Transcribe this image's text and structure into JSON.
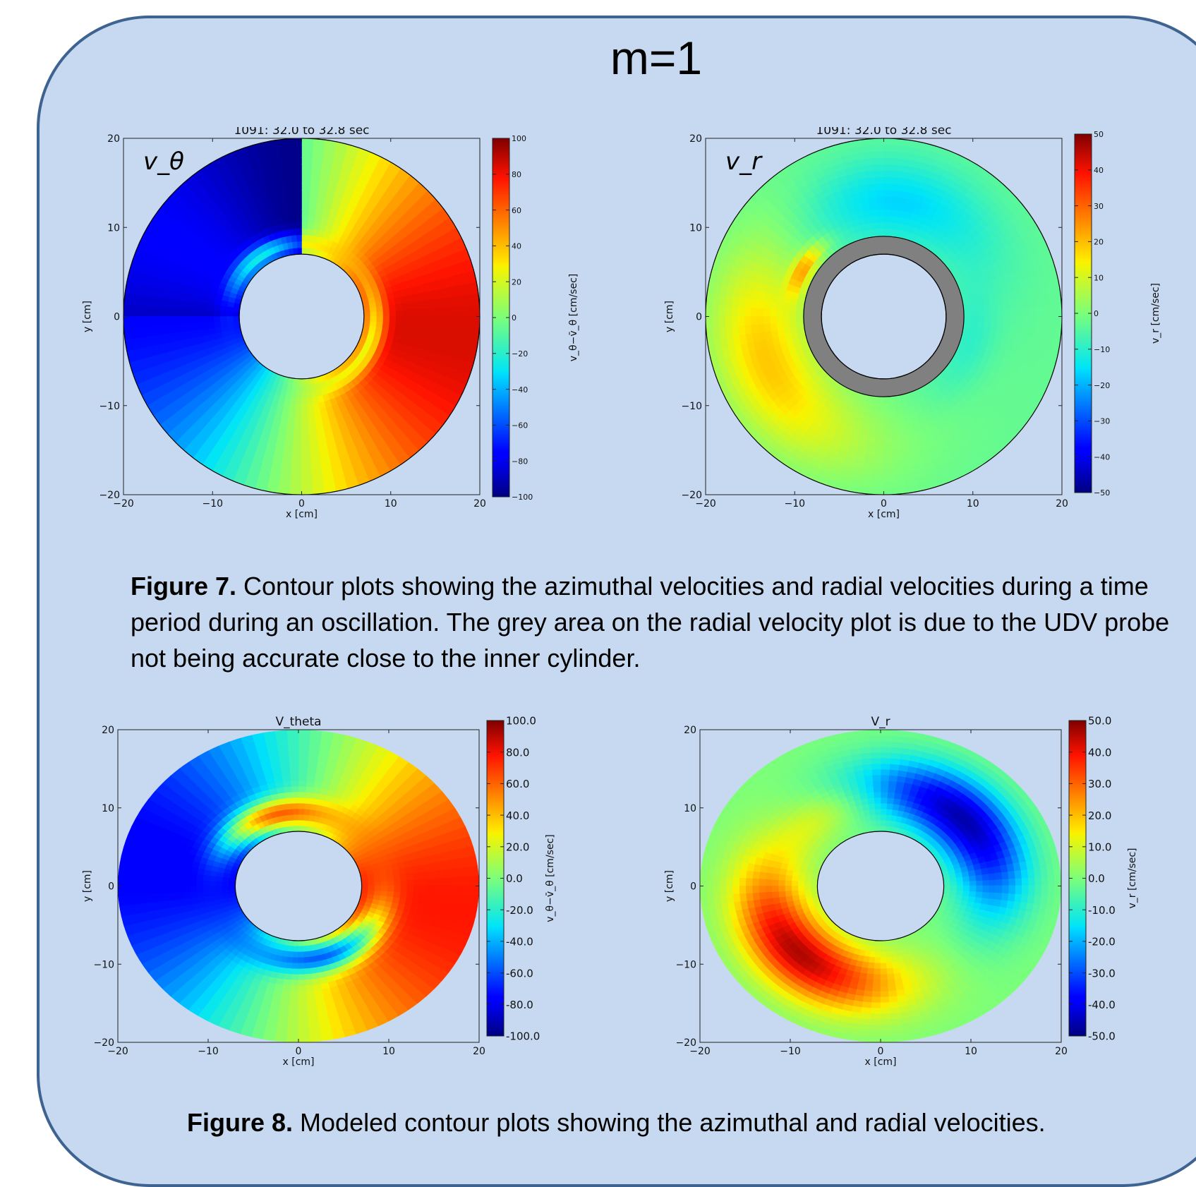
{
  "main_title": "m=1",
  "figure7_caption": {
    "label": "Figure 7.",
    "text": " Contour plots showing the  azimuthal velocities and radial velocities during a time period during an oscillation. The grey area on the radial velocity plot is due to the UDV probe not being accurate close to the inner cylinder."
  },
  "figure8_caption": {
    "label": "Figure 8.",
    "text": " Modeled contour plots showing the azimuthal and radial velocities."
  },
  "colors": {
    "panel_fill": "#c6d9f0",
    "panel_border": "#3e6390",
    "probe_grey": "#808080"
  },
  "chart_data": [
    {
      "id": "p1",
      "type": "heatmap",
      "title": "1091: 32.0 to 32.8 sec",
      "annotation": "v_θ",
      "xlabel": "x [cm]",
      "ylabel": "y [cm]",
      "xlim": [
        -20,
        20
      ],
      "ylim": [
        -20,
        20
      ],
      "xticks": [
        -20,
        -10,
        0,
        10,
        20
      ],
      "yticks": [
        -20,
        -10,
        0,
        10,
        20
      ],
      "xtick_labels": [
        "−20",
        "−10",
        "0",
        "10",
        "20"
      ],
      "ytick_labels": [
        "−20",
        "−10",
        "0",
        "10",
        "20"
      ],
      "colorbar": {
        "label": "v_θ−v̄_θ [cm/sec]",
        "min": -100,
        "max": 100,
        "ticks": [
          100,
          80,
          60,
          40,
          20,
          0,
          -20,
          -40,
          -60,
          -80,
          -100
        ],
        "tick_labels": [
          "100",
          "80",
          "60",
          "40",
          "20",
          "0",
          "−20",
          "−40",
          "−60",
          "−80",
          "−100"
        ]
      },
      "inner_radius": 7,
      "outer_radius": 20
    },
    {
      "id": "p2",
      "type": "heatmap",
      "title": "1091: 32.0 to 32.8 sec",
      "annotation": "v_r",
      "xlabel": "x [cm]",
      "ylabel": "y [cm]",
      "xlim": [
        -20,
        20
      ],
      "ylim": [
        -20,
        20
      ],
      "xticks": [
        -20,
        -10,
        0,
        10,
        20
      ],
      "yticks": [
        -20,
        -10,
        0,
        10,
        20
      ],
      "xtick_labels": [
        "−20",
        "−10",
        "0",
        "10",
        "20"
      ],
      "ytick_labels": [
        "−20",
        "−10",
        "0",
        "10",
        "20"
      ],
      "colorbar": {
        "label": "v_r [cm/sec]",
        "min": -50,
        "max": 50,
        "ticks": [
          50,
          40,
          30,
          20,
          10,
          0,
          -10,
          -20,
          -30,
          -40,
          -50
        ],
        "tick_labels": [
          "50",
          "40",
          "30",
          "20",
          "10",
          "0",
          "−10",
          "−20",
          "−30",
          "−40",
          "−50"
        ]
      },
      "inner_radius": 7,
      "outer_radius": 20,
      "grey_ring_outer_radius": 9
    },
    {
      "id": "p3",
      "type": "heatmap",
      "title": "V_theta",
      "xlabel": "x [cm]",
      "ylabel": "y [cm]",
      "xlim": [
        -20,
        20
      ],
      "ylim": [
        -20,
        20
      ],
      "xticks": [
        -20,
        -10,
        0,
        10,
        20
      ],
      "yticks": [
        -20,
        -10,
        0,
        10,
        20
      ],
      "xtick_labels": [
        "−20",
        "−10",
        "0",
        "10",
        "20"
      ],
      "ytick_labels": [
        "−20",
        "−10",
        "0",
        "10",
        "20"
      ],
      "colorbar": {
        "label": "v_θ−v̄_θ [cm/sec]",
        "min": -100,
        "max": 100,
        "ticks": [
          100,
          80,
          60,
          40,
          20,
          0,
          -20,
          -40,
          -60,
          -80,
          -100
        ],
        "tick_labels": [
          "100.0",
          "80.0",
          "60.0",
          "40.0",
          "20.0",
          "0.0",
          "-20.0",
          "-40.0",
          "-60.0",
          "-80.0",
          "-100.0"
        ]
      },
      "inner_radius": 7,
      "outer_radius": 20
    },
    {
      "id": "p4",
      "type": "heatmap",
      "title": "V_r",
      "xlabel": "x [cm]",
      "ylabel": "y [cm]",
      "xlim": [
        -20,
        20
      ],
      "ylim": [
        -20,
        20
      ],
      "xticks": [
        -20,
        -10,
        0,
        10,
        20
      ],
      "yticks": [
        -20,
        -10,
        0,
        10,
        20
      ],
      "xtick_labels": [
        "−20",
        "−10",
        "0",
        "10",
        "20"
      ],
      "ytick_labels": [
        "−20",
        "−10",
        "0",
        "10",
        "20"
      ],
      "colorbar": {
        "label": "v_r [cm/sec]",
        "min": -50,
        "max": 50,
        "ticks": [
          50,
          40,
          30,
          20,
          10,
          0,
          -10,
          -20,
          -30,
          -40,
          -50
        ],
        "tick_labels": [
          "50.0",
          "40.0",
          "30.0",
          "20.0",
          "10.0",
          "0.0",
          "-10.0",
          "-20.0",
          "-30.0",
          "-40.0",
          "-50.0"
        ]
      },
      "inner_radius": 7,
      "outer_radius": 20
    }
  ]
}
